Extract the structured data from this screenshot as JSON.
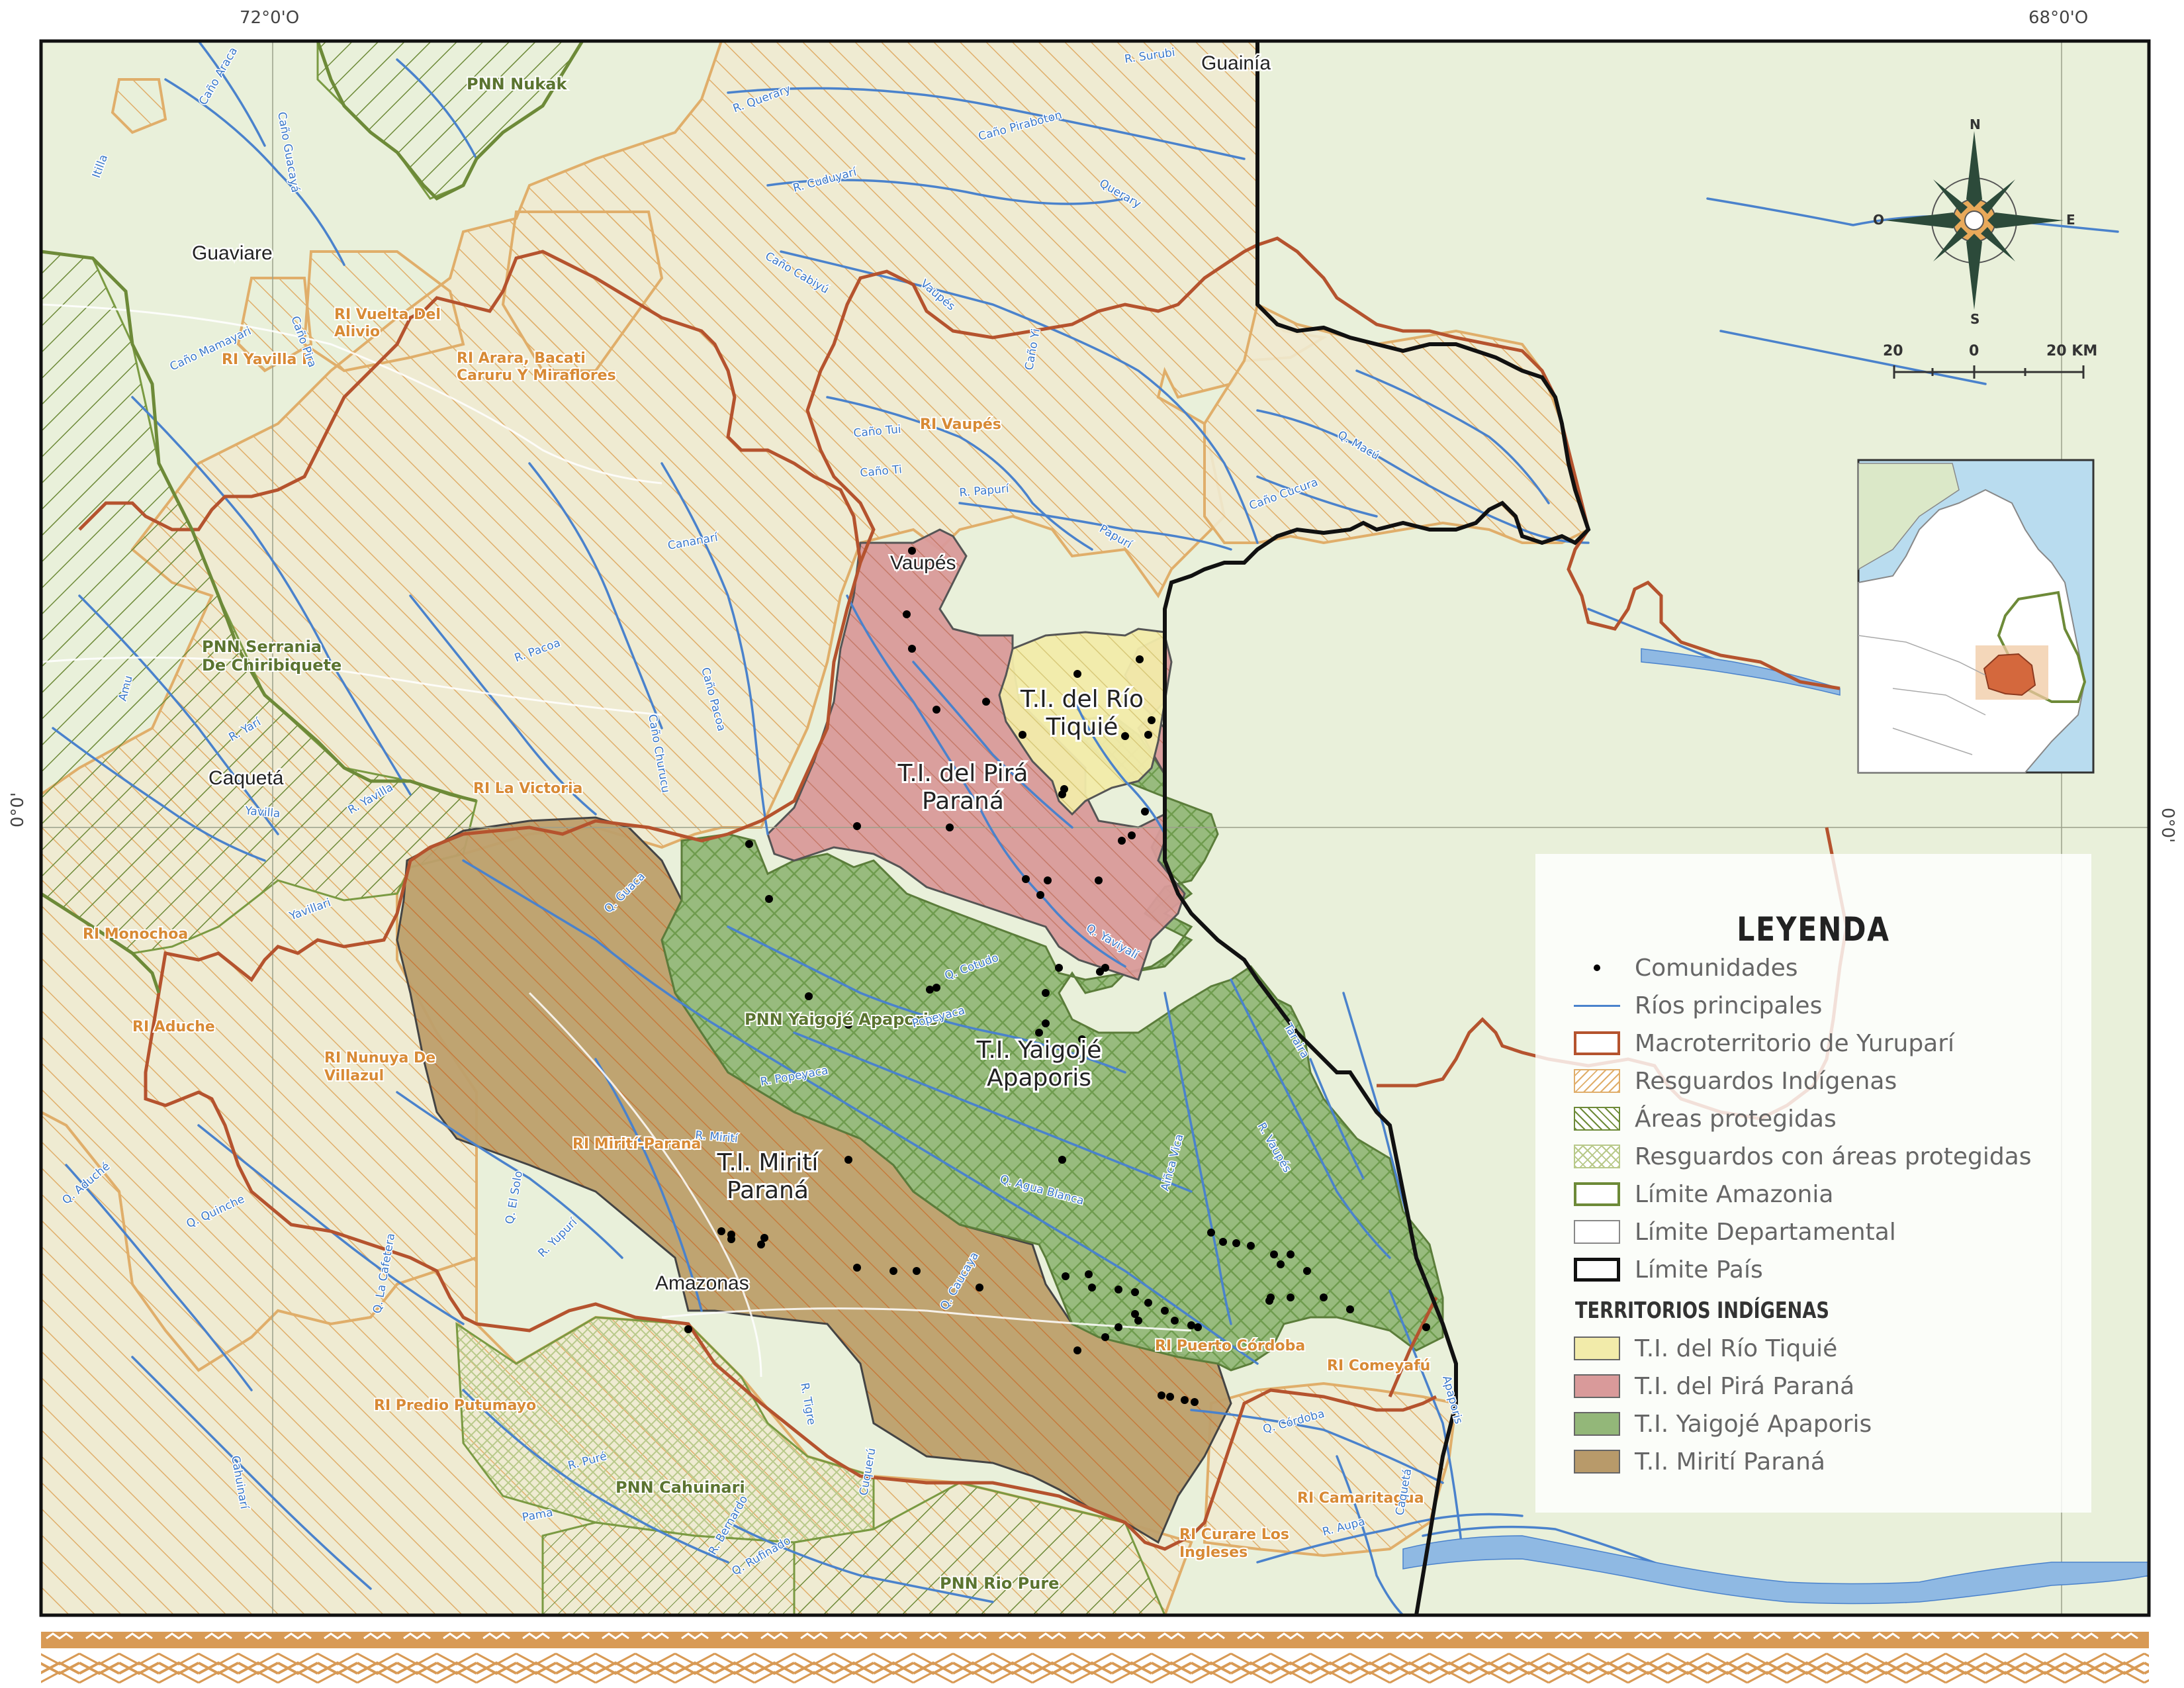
{
  "coords": {
    "lon_left": "72°0'O",
    "lon_right": "68°0'O",
    "lat_left": "0°0'",
    "lat_right": "0°0'"
  },
  "colors": {
    "background": "#e8efd9",
    "resguardo_fill": "#efe9cc",
    "resguardo_line": "#e0ae6a",
    "area_protegida": "#6d8a38",
    "ti_tiquie": "#f2ebaa",
    "ti_pira": "#d99a9a",
    "ti_yaigoje": "#93b779",
    "ti_mirit": "#b89a6a",
    "macroterritorio": "#b5532e",
    "rivers": "#4a82cc",
    "country_border": "#111111"
  },
  "territory_labels": {
    "tiquie": [
      "T.I. del Río",
      "Tiquié"
    ],
    "pira": [
      "T.I. del Pirá",
      "Paraná"
    ],
    "yaigoje": [
      "T.I. Yaigojé",
      "Apaporis"
    ],
    "mirit": [
      "T.I. Mirití",
      "Paraná"
    ]
  },
  "department_labels": [
    "Guaviare",
    "Vaupés",
    "Caquetá",
    "Amazonas",
    "Guainía"
  ],
  "protected_labels": [
    "PNN Nukak",
    "PNN Serrania",
    "De Chiribiquete",
    "PNN Yaigojé Apaporis",
    "PNN Cahuinari",
    "PNN Rio Pure"
  ],
  "resguardo_labels": [
    "RI Vuelta Del",
    "Alivio",
    "RI Yavilla II",
    "RI Arara, Bacati",
    "Caruru Y Miraflores",
    "RI Vaupés",
    "RI La Victoria",
    "RI Monochoa",
    "RI Aduche",
    "RI Nunuya De",
    "Villazul",
    "RI Mirití-Paraná",
    "RI Puerto Córdoba",
    "RI Comeyafú",
    "RI Predio Putumayo",
    "RI Camaritagua",
    "RI Curare Los",
    "Ingleses"
  ],
  "river_labels": [
    "R. Surubi",
    "Caño Guacayá",
    "Caño Araca",
    "Itilla",
    "R. Querary",
    "Caño Piraboton",
    "R. Cuduyarí",
    "Querary",
    "Caño Cabiyú",
    "Vaupés",
    "Caño Yi",
    "Caño Tui",
    "Caño Ti",
    "R. Papurí",
    "Papurí",
    "Q. Macú",
    "Caño Cucura",
    "Cananarí",
    "R. Pacoa",
    "Caño Pacoa",
    "Caño Churucu",
    "Caño Mamayari",
    "Caño Pira",
    "Amu",
    "R. Yarí",
    "Yavilla",
    "R. Yavilla",
    "Yavillari",
    "Q. Guaca",
    "Q. Cotudo",
    "R. Popeyaca",
    "Popeyaca",
    "Q. Agua Blanca",
    "Aiñca Vica",
    "R. Vaupés",
    "Taraira",
    "Q. Quinche",
    "Q. Aduché",
    "R. Yupurí",
    "Q. El Solo",
    "R. Mirití",
    "Q. La Cafetera",
    "Q. Caucaya",
    "Q. Córdoba",
    "Cahuinarí",
    "R. Bernardo",
    "R. Aupa",
    "Apaporis",
    "Caquetá",
    "Cuquerú",
    "Pama",
    "R. Puré",
    "R. Tigre",
    "Q. Rufinado",
    "Q. Yaviyalí"
  ],
  "compass": {
    "n": "N",
    "s": "S",
    "e": "E",
    "w": "O"
  },
  "scale": {
    "left": "20",
    "mid": "0",
    "right": "20 KM"
  },
  "legend": {
    "title": "LEYENDA",
    "items": [
      "Comunidades",
      "Ríos principales",
      "Macroterritorio de Yuruparí",
      "Resguardos Indígenas",
      "Áreas protegidas",
      "Resguardos con áreas protegidas",
      "Límite Amazonia",
      "Límite Departamental",
      "Límite País"
    ],
    "subtitle": "TERRITORIOS INDÍGENAS",
    "territories": [
      "T.I. del Río Tiquié",
      "T.I. del Pirá Paraná",
      "T.I. Yaigojé Apaporis",
      "T.I. Mirití Paraná"
    ]
  },
  "communities": [
    [
      1378,
      832
    ],
    [
      1370,
      928
    ],
    [
      1378,
      980
    ],
    [
      1415,
      1072
    ],
    [
      1490,
      1060
    ],
    [
      1545,
      1110
    ],
    [
      1628,
      1018
    ],
    [
      1722,
      996
    ],
    [
      1740,
      1088
    ],
    [
      1735,
      1110
    ],
    [
      1700,
      1112
    ],
    [
      1605,
      1200
    ],
    [
      1608,
      1192
    ],
    [
      1730,
      1226
    ],
    [
      1710,
      1262
    ],
    [
      1695,
      1270
    ],
    [
      1295,
      1248
    ],
    [
      1435,
      1250
    ],
    [
      1550,
      1328
    ],
    [
      1583,
      1330
    ],
    [
      1660,
      1330
    ],
    [
      1572,
      1352
    ],
    [
      1600,
      1462
    ],
    [
      1670,
      1462
    ],
    [
      1662,
      1468
    ],
    [
      1222,
      1505
    ],
    [
      1580,
      1500
    ],
    [
      1415,
      1492
    ],
    [
      1240,
      1548
    ],
    [
      1282,
      1548
    ],
    [
      1132,
      1275
    ],
    [
      1162,
      1358
    ],
    [
      1405,
      1495
    ],
    [
      1570,
      1560
    ],
    [
      1635,
      1570
    ],
    [
      1580,
      1546
    ],
    [
      1282,
      1752
    ],
    [
      1605,
      1752
    ],
    [
      1830,
      1862
    ],
    [
      1848,
      1876
    ],
    [
      1868,
      1878
    ],
    [
      1890,
      1882
    ],
    [
      1925,
      1895
    ],
    [
      1950,
      1895
    ],
    [
      1935,
      1910
    ],
    [
      1975,
      1920
    ],
    [
      1950,
      1960
    ],
    [
      2000,
      1960
    ],
    [
      2040,
      1978
    ],
    [
      1610,
      1928
    ],
    [
      1650,
      1945
    ],
    [
      1715,
      1952
    ],
    [
      1735,
      1968
    ],
    [
      1760,
      1980
    ],
    [
      1775,
      1995
    ],
    [
      1800,
      2002
    ],
    [
      1810,
      2005
    ],
    [
      1090,
      1860
    ],
    [
      1105,
      1865
    ],
    [
      1155,
      1870
    ],
    [
      1295,
      1915
    ],
    [
      1350,
      1920
    ],
    [
      1385,
      1920
    ],
    [
      1480,
      1945
    ],
    [
      1645,
      1925
    ],
    [
      1690,
      1948
    ],
    [
      1715,
      1985
    ],
    [
      1628,
      2040
    ],
    [
      1670,
      2020
    ],
    [
      1690,
      2005
    ],
    [
      1720,
      1995
    ],
    [
      1755,
      2108
    ],
    [
      1768,
      2110
    ],
    [
      1790,
      2115
    ],
    [
      1805,
      2118
    ],
    [
      1920,
      1960
    ],
    [
      1918,
      1965
    ],
    [
      2155,
      2005
    ],
    [
      1040,
      2008
    ],
    [
      1150,
      1880
    ],
    [
      1105,
      1872
    ]
  ]
}
